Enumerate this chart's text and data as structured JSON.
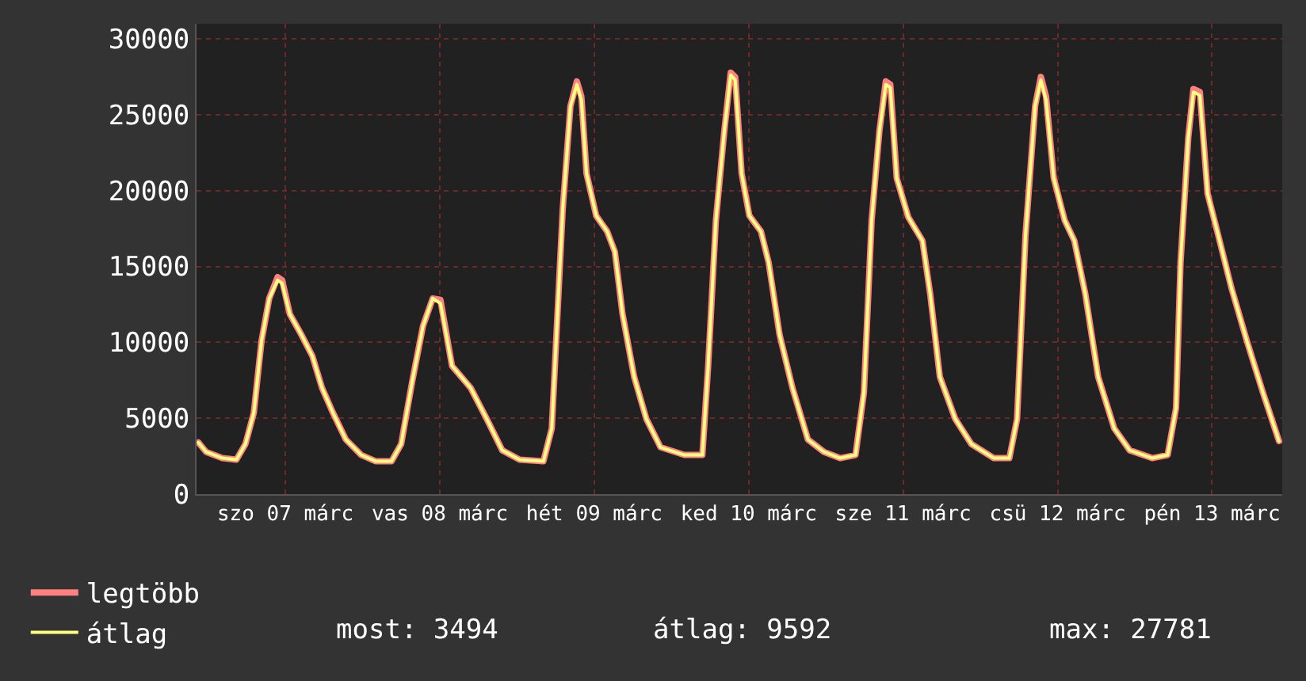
{
  "chart_data": {
    "type": "line",
    "x": [
      "--03-06T10:30",
      "--03-06T11:42",
      "--03-06T14:12",
      "--03-06T16:24",
      "--03-06T17:48",
      "--03-06T19:06",
      "--03-06T20:18",
      "--03-06T21:30",
      "--03-06T22:48",
      "--03-06T23:30",
      "--03-07T00:42",
      "--03-07T02:30",
      "--03-07T04:12",
      "--03-07T05:42",
      "--03-07T07:24",
      "--03-07T09:24",
      "--03-07T11:48",
      "--03-07T14:00",
      "--03-07T16:30",
      "--03-07T18:00",
      "--03-07T19:42",
      "--03-07T21:24",
      "--03-07T22:54",
      "--03-08T00:06",
      "--03-08T01:54",
      "--03-08T04:48",
      "--03-08T07:18",
      "--03-08T09:42",
      "--03-08T12:24",
      "--03-08T16:06",
      "--03-08T17:24",
      "--03-08T19:06",
      "--03-08T20:18",
      "--03-08T21:18",
      "--03-08T22:00",
      "--03-08T22:48",
      "--03-09T00:18",
      "--03-09T02:00",
      "--03-09T03:12",
      "--03-09T04:24",
      "--03-09T06:12",
      "--03-09T08:06",
      "--03-09T10:18",
      "--03-09T14:00",
      "--03-09T16:48",
      "--03-09T17:42",
      "--03-09T18:54",
      "--03-09T20:12",
      "--03-09T21:12",
      "--03-09T21:54",
      "--03-09T22:54",
      "--03-10T00:06",
      "--03-10T01:54",
      "--03-10T03:06",
      "--03-10T04:48",
      "--03-10T06:48",
      "--03-10T09:12",
      "--03-10T11:42",
      "--03-10T14:12",
      "--03-10T16:36",
      "--03-10T17:54",
      "--03-10T19:06",
      "--03-10T20:18",
      "--03-10T21:18",
      "--03-10T22:00",
      "--03-10T23:00",
      "--03-11T00:48",
      "--03-11T03:00",
      "--03-11T04:12",
      "--03-11T05:42",
      "--03-11T08:06",
      "--03-11T10:36",
      "--03-11T14:06",
      "--03-11T16:30",
      "--03-11T17:42",
      "--03-11T19:00",
      "--03-11T20:30",
      "--03-11T21:24",
      "--03-11T22:12",
      "--03-11T23:24",
      "--03-12T01:06",
      "--03-12T02:36",
      "--03-12T04:18",
      "--03-12T06:18",
      "--03-12T08:48",
      "--03-12T11:12",
      "--03-12T14:42",
      "--03-12T17:06",
      "--03-12T18:24",
      "--03-12T19:06",
      "--03-12T20:18",
      "--03-12T21:06",
      "--03-12T22:06",
      "--03-12T23:18",
      "--03-13T00:48",
      "--03-13T03:00",
      "--03-13T05:24",
      "--03-13T07:54",
      "--03-13T10:24"
    ],
    "series": [
      {
        "name": "legtöbb",
        "color": "#ff8080",
        "values": [
          3400,
          2780,
          2370,
          2270,
          3300,
          5360,
          10100,
          12900,
          14300,
          14100,
          11860,
          10500,
          9100,
          7000,
          5360,
          3600,
          2580,
          2170,
          2170,
          3300,
          7400,
          11100,
          12900,
          12800,
          8450,
          7000,
          4950,
          2890,
          2270,
          2170,
          4330,
          18760,
          25570,
          27200,
          26200,
          21130,
          18350,
          17320,
          15980,
          11860,
          7730,
          4950,
          3090,
          2580,
          2580,
          8450,
          18040,
          23900,
          27781,
          27500,
          21130,
          18350,
          17320,
          15260,
          10500,
          7000,
          3600,
          2780,
          2370,
          2580,
          6700,
          18040,
          23900,
          27200,
          27000,
          20820,
          18250,
          16700,
          13200,
          7730,
          4950,
          3300,
          2370,
          2370,
          4950,
          17010,
          25570,
          27500,
          26200,
          20820,
          18040,
          16700,
          13200,
          7730,
          4330,
          2890,
          2370,
          2580,
          5670,
          15260,
          23500,
          26700,
          26500,
          19800,
          17320,
          13600,
          10100,
          6700,
          3494
        ]
      },
      {
        "name": "átlag",
        "color": "#ffff80",
        "values": [
          3400,
          2780,
          2370,
          2270,
          3300,
          5360,
          10100,
          12900,
          14100,
          13900,
          11860,
          10500,
          9100,
          7000,
          5360,
          3600,
          2580,
          2170,
          2170,
          3300,
          7400,
          11100,
          12900,
          12580,
          8450,
          7000,
          4950,
          2890,
          2270,
          2170,
          4330,
          18760,
          25570,
          27000,
          25980,
          21130,
          18350,
          17320,
          15980,
          11860,
          7730,
          4950,
          3090,
          2580,
          2580,
          8450,
          18040,
          23900,
          27630,
          27300,
          21130,
          18350,
          17320,
          15260,
          10500,
          7000,
          3600,
          2780,
          2370,
          2580,
          6700,
          18040,
          23900,
          27000,
          26800,
          20820,
          18250,
          16700,
          13200,
          7730,
          4950,
          3300,
          2370,
          2370,
          4950,
          17010,
          25570,
          27300,
          25980,
          20820,
          18040,
          16700,
          13200,
          7730,
          4330,
          2890,
          2370,
          2580,
          5670,
          15260,
          23500,
          26500,
          26290,
          19800,
          17320,
          13600,
          10100,
          6700,
          3494
        ]
      }
    ],
    "xlim": [
      "--03-06T10:12",
      "--03-13T10:54"
    ],
    "xticks": [
      {
        "value": "--03-07",
        "label": "szo 07 márc"
      },
      {
        "value": "--03-08",
        "label": "vas 08 márc"
      },
      {
        "value": "--03-09",
        "label": "hét 09 márc"
      },
      {
        "value": "--03-10",
        "label": "ked 10 márc"
      },
      {
        "value": "--03-11",
        "label": "sze 11 márc"
      },
      {
        "value": "--03-12",
        "label": "csü 12 márc"
      },
      {
        "value": "--03-13",
        "label": "pén 13 márc"
      }
    ],
    "ylim": [
      0,
      31000
    ],
    "yticks": [
      0,
      5000,
      10000,
      15000,
      20000,
      25000,
      30000
    ],
    "grid": true,
    "legend": "bottom left",
    "marker": "none",
    "line_style": "solid",
    "annotations": [
      "most: 3494",
      "átlag: 9592",
      "max: 27781"
    ]
  }
}
